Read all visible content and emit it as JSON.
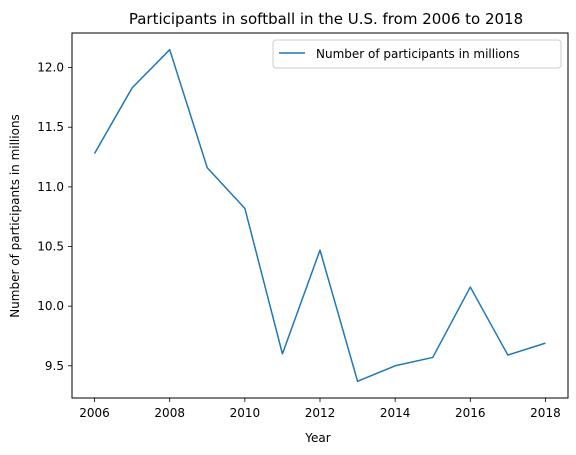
{
  "chart_data": {
    "type": "line",
    "title": "Participants in softball in the U.S. from 2006 to 2018",
    "xlabel": "Year",
    "ylabel": "Number of participants in millions",
    "x": [
      2006,
      2007,
      2008,
      2009,
      2010,
      2011,
      2012,
      2013,
      2014,
      2015,
      2016,
      2017,
      2018
    ],
    "series": [
      {
        "name": "Number of participants in millions",
        "color": "#1f77b4",
        "values": [
          11.28,
          11.83,
          12.15,
          11.16,
          10.82,
          9.6,
          10.47,
          9.37,
          9.5,
          9.57,
          10.16,
          9.59,
          9.69
        ]
      }
    ],
    "xlim": [
      2005.4,
      2018.6
    ],
    "ylim": [
      9.23,
      12.29
    ],
    "xticks": [
      2006,
      2008,
      2010,
      2012,
      2014,
      2016,
      2018
    ],
    "yticks": [
      9.5,
      10.0,
      10.5,
      11.0,
      11.5,
      12.0
    ],
    "ytick_labels": [
      "9.5",
      "10.0",
      "10.5",
      "11.0",
      "11.5",
      "12.0"
    ],
    "grid": false,
    "legend_position": "top-right"
  }
}
